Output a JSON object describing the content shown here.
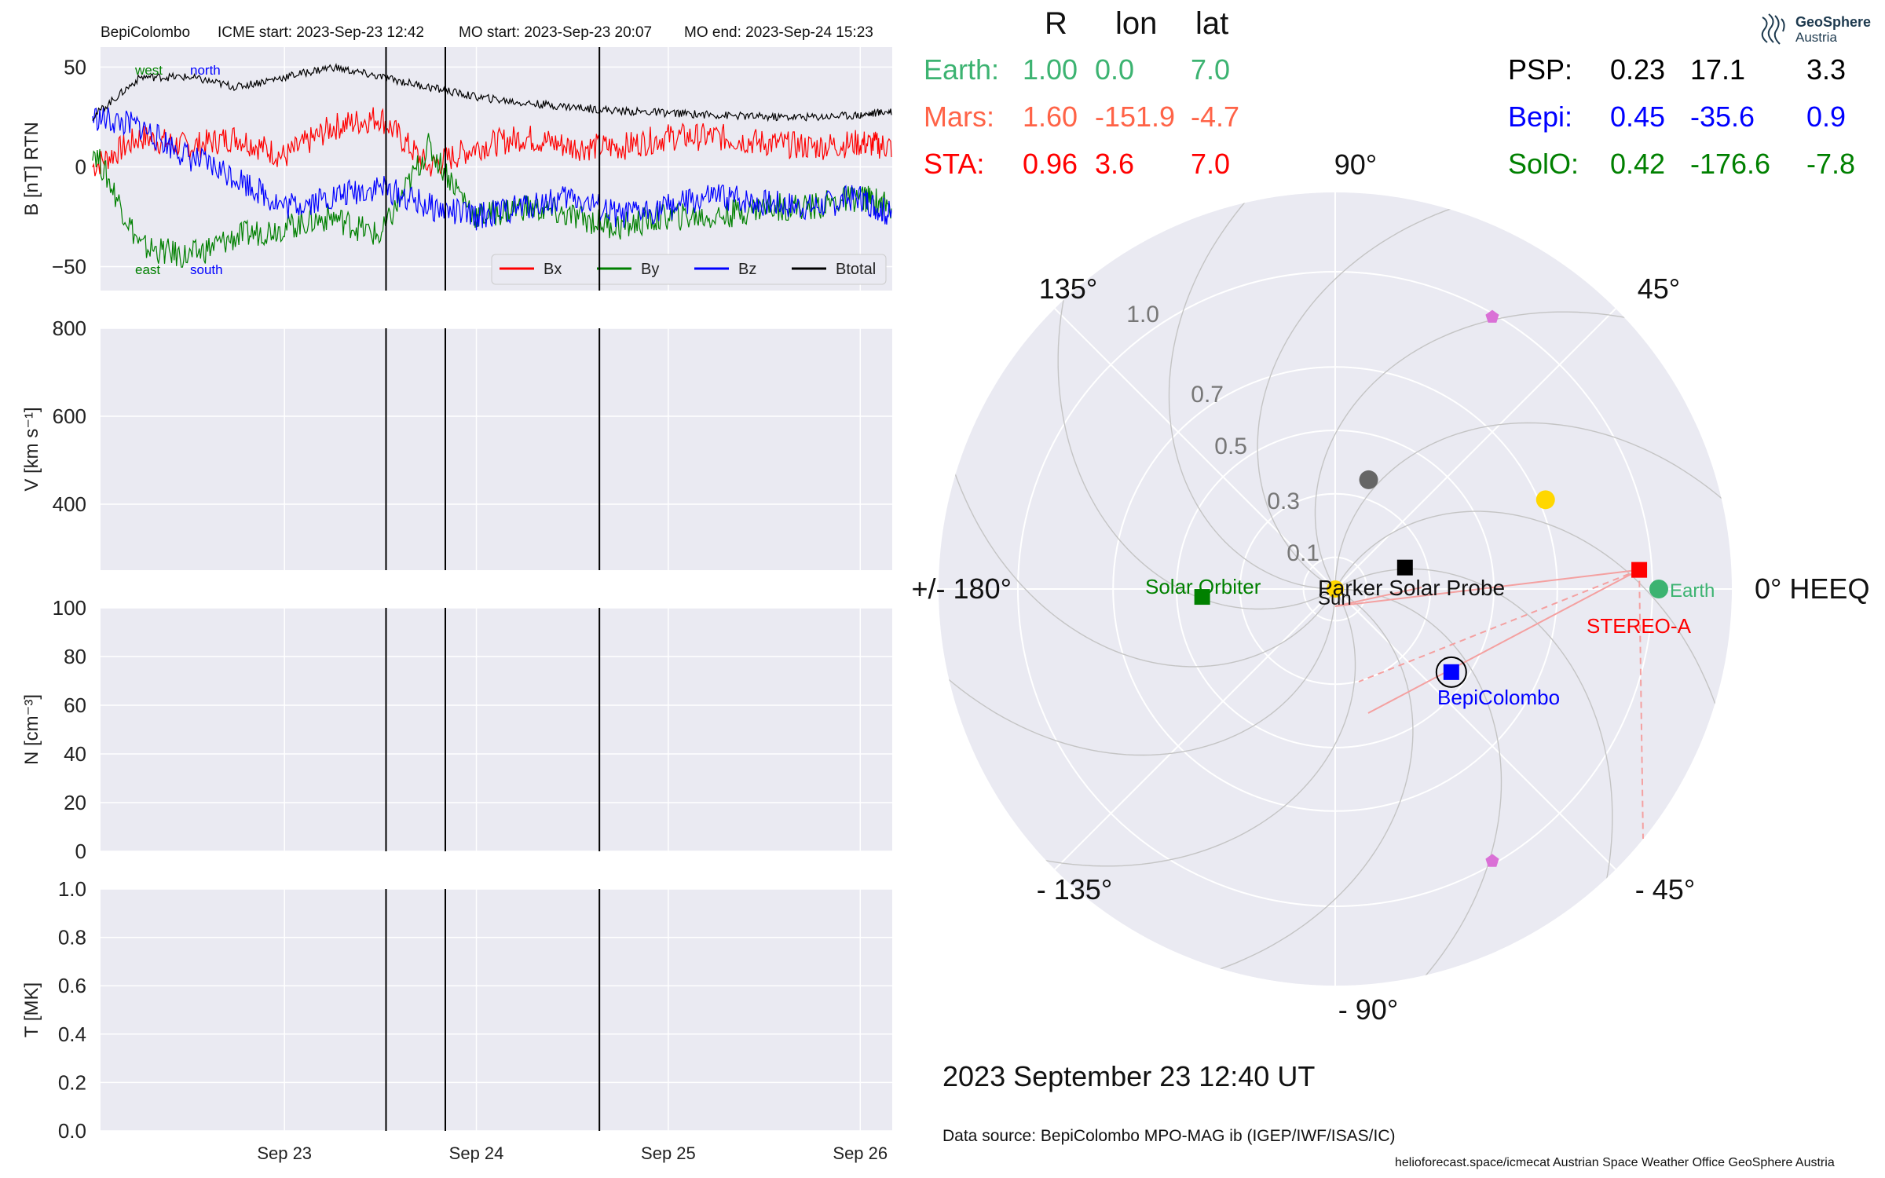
{
  "colors": {
    "bx": "#ff0000",
    "by": "#008000",
    "bz": "#0000ff",
    "btotal": "#000000",
    "panel_bg": "#eaeaf2",
    "earth": "#3cb371",
    "mars": "#ff6347",
    "sta": "#ff0000",
    "psp": "#000000",
    "bepi": "#0000ff",
    "solo": "#008000"
  },
  "header": {
    "spacecraft": "BepiColombo",
    "icme_start": "ICME start: 2023-Sep-23 12:42",
    "mo_start": "MO start: 2023-Sep-23 20:07",
    "mo_end": "MO end: 2023-Sep-24 15:23"
  },
  "positions": {
    "col_headers": [
      "R",
      "lon",
      "lat"
    ],
    "left": [
      {
        "name": "Earth:",
        "r": "1.00",
        "lon": "0.0",
        "lat": "7.0",
        "color": "#3cb371"
      },
      {
        "name": "Mars:",
        "r": "1.60",
        "lon": "-151.9",
        "lat": "-4.7",
        "color": "#ff6347"
      },
      {
        "name": "STA:",
        "r": "0.96",
        "lon": "3.6",
        "lat": "7.0",
        "color": "#ff0000"
      }
    ],
    "right": [
      {
        "name": "PSP:",
        "r": "0.23",
        "lon": "17.1",
        "lat": "3.3",
        "color": "#000000"
      },
      {
        "name": "Bepi:",
        "r": "0.45",
        "lon": "-35.6",
        "lat": "0.9",
        "color": "#0000ff"
      },
      {
        "name": "SolO:",
        "r": "0.42",
        "lon": "-176.6",
        "lat": "-7.8",
        "color": "#008000"
      }
    ]
  },
  "logo": {
    "line1": "GeoSphere",
    "line2": "Austria"
  },
  "datestamp": "2023 September 23  12:40 UT",
  "source": "Data source: BepiColombo MPO-MAG ib (IGEP/IWF/ISAS/IC)",
  "footer": "helioforecast.space/icmecat   Austrian Space Weather Office   GeoSphere Austria",
  "chart_data": [
    {
      "type": "line",
      "title": "",
      "ylabel": "B [nT] RTN",
      "ylim": [
        -62,
        60
      ],
      "yticks": [
        "50",
        "0",
        "−50"
      ],
      "xticks": [
        "Sep 23",
        "Sep 24",
        "Sep 25",
        "Sep 26"
      ],
      "x_range_days_from": "2023-09-22",
      "annotations": [
        "west",
        "north",
        "east",
        "south"
      ],
      "vlines": [
        "2023-09-23 12:42",
        "2023-09-23 20:07",
        "2023-09-24 15:23"
      ],
      "legend": "bottom-right",
      "series": [
        {
          "name": "Bx",
          "x": [
            "09-22 00:00",
            "09-22 06:00",
            "09-22 12:00",
            "09-22 18:00",
            "09-23 00:00",
            "09-23 06:00",
            "09-23 12:00",
            "09-23 18:00",
            "09-24 00:00",
            "09-24 06:00",
            "09-24 12:00",
            "09-24 18:00",
            "09-25 00:00",
            "09-25 06:00",
            "09-25 12:00",
            "09-25 18:00",
            "09-26 00:00",
            "09-26 04:00"
          ],
          "values": [
            0,
            15,
            10,
            15,
            5,
            20,
            25,
            0,
            10,
            15,
            10,
            10,
            15,
            15,
            12,
            10,
            12,
            10
          ]
        },
        {
          "name": "By",
          "x": [
            "09-22 00:00",
            "09-22 06:00",
            "09-22 12:00",
            "09-22 18:00",
            "09-23 00:00",
            "09-23 06:00",
            "09-23 12:00",
            "09-23 18:00",
            "09-24 00:00",
            "09-24 06:00",
            "09-24 12:00",
            "09-24 18:00",
            "09-25 00:00",
            "09-25 06:00",
            "09-25 12:00",
            "09-25 18:00",
            "09-26 00:00",
            "09-26 04:00"
          ],
          "values": [
            10,
            -40,
            -45,
            -35,
            -30,
            -25,
            -35,
            10,
            -25,
            -20,
            -25,
            -30,
            -25,
            -25,
            -20,
            -20,
            -15,
            -20
          ]
        },
        {
          "name": "Bz",
          "x": [
            "09-22 00:00",
            "09-22 06:00",
            "09-22 12:00",
            "09-22 18:00",
            "09-23 00:00",
            "09-23 06:00",
            "09-23 12:00",
            "09-23 18:00",
            "09-24 00:00",
            "09-24 06:00",
            "09-24 12:00",
            "09-24 18:00",
            "09-25 00:00",
            "09-25 06:00",
            "09-25 12:00",
            "09-25 18:00",
            "09-26 00:00",
            "09-26 04:00"
          ],
          "values": [
            25,
            20,
            5,
            -5,
            -20,
            -15,
            -10,
            -20,
            -25,
            -20,
            -15,
            -25,
            -20,
            -15,
            -18,
            -20,
            -15,
            -25
          ]
        },
        {
          "name": "Btotal",
          "x": [
            "09-22 00:00",
            "09-22 06:00",
            "09-22 12:00",
            "09-22 18:00",
            "09-23 00:00",
            "09-23 06:00",
            "09-23 12:00",
            "09-23 18:00",
            "09-24 00:00",
            "09-24 06:00",
            "09-24 12:00",
            "09-24 18:00",
            "09-25 00:00",
            "09-25 06:00",
            "09-25 12:00",
            "09-25 18:00",
            "09-26 00:00",
            "09-26 04:00"
          ],
          "values": [
            25,
            45,
            45,
            40,
            45,
            50,
            45,
            40,
            35,
            32,
            30,
            28,
            27,
            26,
            25,
            25,
            26,
            28
          ]
        }
      ]
    },
    {
      "type": "line",
      "ylabel": "V [km s⁻¹]",
      "ylim": [
        250,
        800
      ],
      "yticks": [
        "800",
        "600",
        "400"
      ],
      "series": []
    },
    {
      "type": "line",
      "ylabel": "N [cm⁻³]",
      "ylim": [
        0,
        100
      ],
      "yticks": [
        "100",
        "80",
        "60",
        "40",
        "20",
        "0"
      ],
      "series": []
    },
    {
      "type": "line",
      "ylabel": "T [MK]",
      "ylim": [
        0,
        1.0
      ],
      "yticks": [
        "1.0",
        "0.8",
        "0.6",
        "0.4",
        "0.2",
        "0.0"
      ],
      "series": []
    },
    {
      "type": "scatter",
      "projection": "polar",
      "rlabels": [
        "1.0",
        "0.7",
        "0.5",
        "0.3",
        "0.1"
      ],
      "angle_labels": [
        "0° HEEQ",
        "45°",
        "90°",
        "135°",
        "+/- 180°",
        "- 135°",
        "- 90°",
        "- 45°"
      ],
      "points": [
        {
          "name": "Sun",
          "r": 0.0,
          "lon": 0.0,
          "color": "#ffd700"
        },
        {
          "name": "Earth",
          "r": 1.0,
          "lon": 0.0,
          "color": "#3cb371"
        },
        {
          "name": "STEREO-A",
          "r": 0.96,
          "lon": 3.6,
          "color": "#ff0000"
        },
        {
          "name": "Parker Solar Probe",
          "r": 0.23,
          "lon": 17.1,
          "color": "#000000"
        },
        {
          "name": "BepiColombo",
          "r": 0.45,
          "lon": -35.6,
          "color": "#0000ff"
        },
        {
          "name": "Solar Orbiter",
          "r": 0.42,
          "lon": -176.6,
          "color": "#008000"
        },
        {
          "name": "",
          "r": 0.36,
          "lon": 73,
          "color": "#666666"
        },
        {
          "name": "",
          "r": 0.72,
          "lon": 23,
          "color": "#ffd700"
        },
        {
          "name": "",
          "r": 0.99,
          "lon": 60,
          "color": "#da70d6"
        },
        {
          "name": "",
          "r": 0.99,
          "lon": -60,
          "color": "#da70d6"
        }
      ]
    }
  ]
}
